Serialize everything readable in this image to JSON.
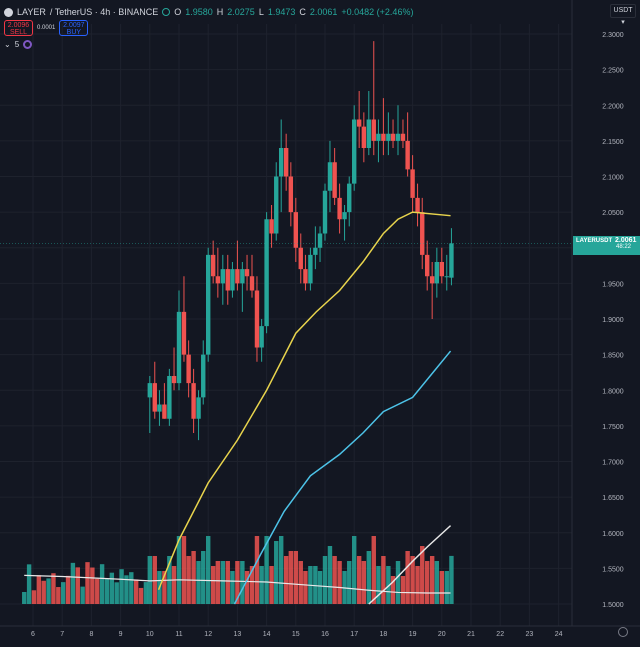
{
  "header": {
    "symbol": "LAYER",
    "pair": "/ TetherUS · 4h · BINANCE",
    "ohlc": {
      "o": "1.9580",
      "h": "2.0275",
      "l": "1.9473",
      "c": "2.0061",
      "chg": "+0.0482 (+2.46%)"
    }
  },
  "trade": {
    "sell_price": "2.0096",
    "sell_label": "SELL",
    "spread": "0.0001",
    "buy_price": "2.0097",
    "buy_label": "BUY"
  },
  "indicators": {
    "count": "5"
  },
  "currency": "USDT",
  "last_price": {
    "symbol": "LAYERUSDT",
    "price": "2.0061",
    "timer": "48:22"
  },
  "colors": {
    "background": "#131722",
    "up": "#26a69a",
    "down": "#ef5350",
    "ma_yellow": "#e8d44d",
    "ma_blue": "#4dc3e8",
    "ma_white": "#e8e8e8",
    "grid": "#1e222d",
    "text": "#b2b5be"
  },
  "chart_data": {
    "type": "candlestick",
    "symbol": "LAYER / TetherUS",
    "interval": "4h",
    "x_tick_labels": [
      "6",
      "7",
      "8",
      "9",
      "10",
      "11",
      "12",
      "13",
      "14",
      "15",
      "16",
      "17",
      "18",
      "19",
      "20",
      "21",
      "22",
      "23",
      "24"
    ],
    "y_tick_labels": [
      "2.3000",
      "2.2500",
      "2.2000",
      "2.1500",
      "2.1000",
      "2.0500",
      "2.0000",
      "1.9500",
      "1.9000",
      "1.8500",
      "1.8000",
      "1.7500",
      "1.7000",
      "1.6500",
      "1.6000",
      "1.5500",
      "1.5000"
    ],
    "ylim": [
      1.5,
      2.3
    ],
    "candles": [
      {
        "d": 10.0,
        "o": 1.79,
        "h": 1.82,
        "l": 1.74,
        "c": 1.81
      },
      {
        "d": 10.17,
        "o": 1.81,
        "h": 1.84,
        "l": 1.76,
        "c": 1.77
      },
      {
        "d": 10.33,
        "o": 1.77,
        "h": 1.8,
        "l": 1.75,
        "c": 1.78
      },
      {
        "d": 10.5,
        "o": 1.78,
        "h": 1.81,
        "l": 1.76,
        "c": 1.76
      },
      {
        "d": 10.67,
        "o": 1.76,
        "h": 1.83,
        "l": 1.75,
        "c": 1.82
      },
      {
        "d": 10.83,
        "o": 1.82,
        "h": 1.86,
        "l": 1.8,
        "c": 1.81
      },
      {
        "d": 11.0,
        "o": 1.81,
        "h": 1.94,
        "l": 1.8,
        "c": 1.91
      },
      {
        "d": 11.17,
        "o": 1.91,
        "h": 1.96,
        "l": 1.84,
        "c": 1.85
      },
      {
        "d": 11.33,
        "o": 1.85,
        "h": 1.87,
        "l": 1.79,
        "c": 1.81
      },
      {
        "d": 11.5,
        "o": 1.81,
        "h": 1.83,
        "l": 1.74,
        "c": 1.76
      },
      {
        "d": 11.67,
        "o": 1.76,
        "h": 1.8,
        "l": 1.73,
        "c": 1.79
      },
      {
        "d": 11.83,
        "o": 1.79,
        "h": 1.87,
        "l": 1.78,
        "c": 1.85
      },
      {
        "d": 12.0,
        "o": 1.85,
        "h": 2.0,
        "l": 1.84,
        "c": 1.99
      },
      {
        "d": 12.17,
        "o": 1.99,
        "h": 2.01,
        "l": 1.95,
        "c": 1.96
      },
      {
        "d": 12.33,
        "o": 1.96,
        "h": 2.0,
        "l": 1.93,
        "c": 1.95
      },
      {
        "d": 12.5,
        "o": 1.95,
        "h": 1.99,
        "l": 1.92,
        "c": 1.97
      },
      {
        "d": 12.67,
        "o": 1.97,
        "h": 1.99,
        "l": 1.92,
        "c": 1.94
      },
      {
        "d": 12.83,
        "o": 1.94,
        "h": 1.98,
        "l": 1.93,
        "c": 1.97
      },
      {
        "d": 13.0,
        "o": 1.97,
        "h": 2.01,
        "l": 1.94,
        "c": 1.95
      },
      {
        "d": 13.17,
        "o": 1.95,
        "h": 1.98,
        "l": 1.91,
        "c": 1.97
      },
      {
        "d": 13.33,
        "o": 1.97,
        "h": 1.99,
        "l": 1.94,
        "c": 1.96
      },
      {
        "d": 13.5,
        "o": 1.96,
        "h": 1.99,
        "l": 1.93,
        "c": 1.94
      },
      {
        "d": 13.67,
        "o": 1.94,
        "h": 1.96,
        "l": 1.84,
        "c": 1.86
      },
      {
        "d": 13.83,
        "o": 1.86,
        "h": 1.9,
        "l": 1.84,
        "c": 1.89
      },
      {
        "d": 14.0,
        "o": 1.89,
        "h": 2.05,
        "l": 1.88,
        "c": 2.04
      },
      {
        "d": 14.17,
        "o": 2.04,
        "h": 2.06,
        "l": 2.0,
        "c": 2.02
      },
      {
        "d": 14.33,
        "o": 2.02,
        "h": 2.12,
        "l": 2.01,
        "c": 2.1
      },
      {
        "d": 14.5,
        "o": 2.1,
        "h": 2.18,
        "l": 2.05,
        "c": 2.14
      },
      {
        "d": 14.67,
        "o": 2.14,
        "h": 2.16,
        "l": 2.08,
        "c": 2.1
      },
      {
        "d": 14.83,
        "o": 2.1,
        "h": 2.12,
        "l": 2.03,
        "c": 2.05
      },
      {
        "d": 15.0,
        "o": 2.05,
        "h": 2.07,
        "l": 1.98,
        "c": 2.0
      },
      {
        "d": 15.17,
        "o": 2.0,
        "h": 2.02,
        "l": 1.95,
        "c": 1.97
      },
      {
        "d": 15.33,
        "o": 1.97,
        "h": 1.99,
        "l": 1.94,
        "c": 1.95
      },
      {
        "d": 15.5,
        "o": 1.95,
        "h": 2.0,
        "l": 1.94,
        "c": 1.99
      },
      {
        "d": 15.67,
        "o": 1.99,
        "h": 2.03,
        "l": 1.97,
        "c": 2.0
      },
      {
        "d": 15.83,
        "o": 2.0,
        "h": 2.03,
        "l": 1.98,
        "c": 2.02
      },
      {
        "d": 16.0,
        "o": 2.02,
        "h": 2.09,
        "l": 2.01,
        "c": 2.08
      },
      {
        "d": 16.17,
        "o": 2.08,
        "h": 2.15,
        "l": 2.05,
        "c": 2.12
      },
      {
        "d": 16.33,
        "o": 2.12,
        "h": 2.14,
        "l": 2.06,
        "c": 2.07
      },
      {
        "d": 16.5,
        "o": 2.07,
        "h": 2.09,
        "l": 2.02,
        "c": 2.04
      },
      {
        "d": 16.67,
        "o": 2.04,
        "h": 2.06,
        "l": 2.01,
        "c": 2.05
      },
      {
        "d": 16.83,
        "o": 2.05,
        "h": 2.1,
        "l": 2.03,
        "c": 2.09
      },
      {
        "d": 17.0,
        "o": 2.09,
        "h": 2.2,
        "l": 2.08,
        "c": 2.18
      },
      {
        "d": 17.17,
        "o": 2.18,
        "h": 2.22,
        "l": 2.14,
        "c": 2.17
      },
      {
        "d": 17.33,
        "o": 2.17,
        "h": 2.19,
        "l": 2.12,
        "c": 2.14
      },
      {
        "d": 17.5,
        "o": 2.14,
        "h": 2.22,
        "l": 2.13,
        "c": 2.18
      },
      {
        "d": 17.67,
        "o": 2.18,
        "h": 2.29,
        "l": 2.13,
        "c": 2.15
      },
      {
        "d": 17.83,
        "o": 2.15,
        "h": 2.18,
        "l": 2.12,
        "c": 2.16
      },
      {
        "d": 18.0,
        "o": 2.16,
        "h": 2.21,
        "l": 2.13,
        "c": 2.15
      },
      {
        "d": 18.17,
        "o": 2.15,
        "h": 2.19,
        "l": 2.13,
        "c": 2.16
      },
      {
        "d": 18.33,
        "o": 2.16,
        "h": 2.18,
        "l": 2.14,
        "c": 2.15
      },
      {
        "d": 18.5,
        "o": 2.15,
        "h": 2.2,
        "l": 2.13,
        "c": 2.16
      },
      {
        "d": 18.67,
        "o": 2.16,
        "h": 2.18,
        "l": 2.14,
        "c": 2.15
      },
      {
        "d": 18.83,
        "o": 2.15,
        "h": 2.19,
        "l": 2.1,
        "c": 2.11
      },
      {
        "d": 19.0,
        "o": 2.11,
        "h": 2.13,
        "l": 2.05,
        "c": 2.07
      },
      {
        "d": 19.17,
        "o": 2.07,
        "h": 2.09,
        "l": 2.03,
        "c": 2.05
      },
      {
        "d": 19.33,
        "o": 2.05,
        "h": 2.07,
        "l": 1.97,
        "c": 1.99
      },
      {
        "d": 19.5,
        "o": 1.99,
        "h": 2.01,
        "l": 1.94,
        "c": 1.96
      },
      {
        "d": 19.67,
        "o": 1.96,
        "h": 1.98,
        "l": 1.9,
        "c": 1.95
      },
      {
        "d": 19.83,
        "o": 1.95,
        "h": 2.0,
        "l": 1.93,
        "c": 1.98
      },
      {
        "d": 20.0,
        "o": 1.98,
        "h": 2.0,
        "l": 1.95,
        "c": 1.96
      },
      {
        "d": 20.17,
        "o": 1.96,
        "h": 1.99,
        "l": 1.94,
        "c": 1.96
      },
      {
        "d": 20.33,
        "o": 1.958,
        "h": 2.0275,
        "l": 1.9473,
        "c": 2.0061
      }
    ],
    "ma_series": [
      {
        "color": "yellow",
        "points": [
          [
            10.3,
            1.52
          ],
          [
            11.0,
            1.59
          ],
          [
            12.0,
            1.67
          ],
          [
            13.0,
            1.73
          ],
          [
            14.0,
            1.8
          ],
          [
            15.0,
            1.88
          ],
          [
            15.7,
            1.91
          ],
          [
            16.5,
            1.94
          ],
          [
            17.3,
            1.98
          ],
          [
            18.0,
            2.02
          ],
          [
            18.5,
            2.04
          ],
          [
            19.0,
            2.05
          ],
          [
            20.3,
            2.045
          ]
        ]
      },
      {
        "color": "blue",
        "points": [
          [
            12.9,
            1.5
          ],
          [
            13.8,
            1.57
          ],
          [
            14.6,
            1.63
          ],
          [
            15.5,
            1.68
          ],
          [
            16.5,
            1.71
          ],
          [
            17.3,
            1.74
          ],
          [
            18.0,
            1.77
          ],
          [
            19.0,
            1.79
          ],
          [
            19.8,
            1.83
          ],
          [
            20.3,
            1.855
          ]
        ]
      },
      {
        "color": "white",
        "points": [
          [
            17.5,
            1.5
          ],
          [
            18.3,
            1.53
          ],
          [
            19.0,
            1.56
          ],
          [
            19.5,
            1.58
          ],
          [
            20.3,
            1.61
          ]
        ]
      }
    ],
    "volume_avg": [
      [
        5.7,
        0.52
      ],
      [
        7.0,
        0.5
      ],
      [
        9.0,
        0.45
      ],
      [
        10.0,
        0.42
      ],
      [
        11.0,
        0.44
      ],
      [
        12.5,
        0.42
      ],
      [
        14.0,
        0.4
      ],
      [
        15.5,
        0.34
      ],
      [
        16.5,
        0.3
      ],
      [
        17.5,
        0.25
      ],
      [
        18.5,
        0.21
      ],
      [
        19.5,
        0.2
      ],
      [
        20.3,
        0.2
      ]
    ]
  }
}
